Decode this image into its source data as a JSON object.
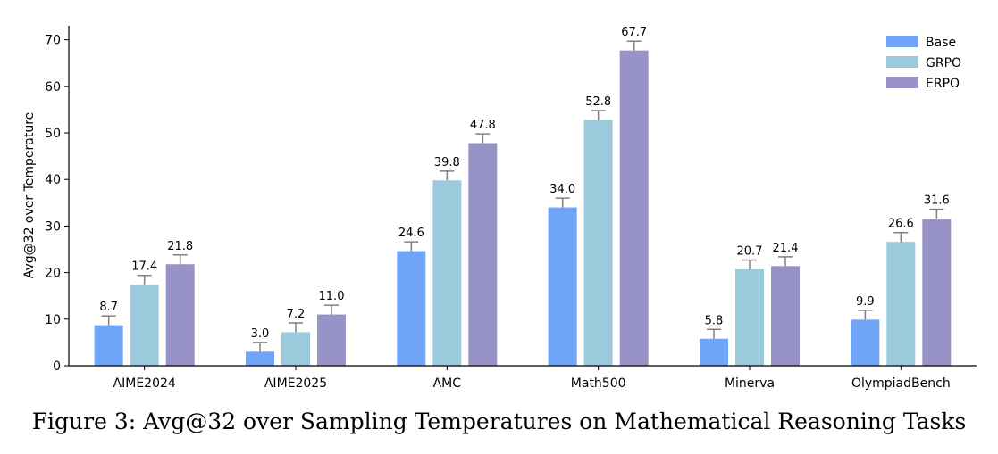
{
  "caption": "Figure 3: Avg@32 over Sampling Temperatures on Mathematical Reasoning Tasks",
  "chart_data": {
    "type": "bar",
    "title": "",
    "xlabel": "",
    "ylabel": "Avg@32 over Temperature",
    "ylim": [
      0,
      73
    ],
    "yticks": [
      0,
      10,
      20,
      30,
      40,
      50,
      60,
      70
    ],
    "categories": [
      "AIME2024",
      "AIME2025",
      "AMC",
      "Math500",
      "Minerva",
      "OlympiadBench"
    ],
    "series": [
      {
        "name": "Base",
        "color": "#6fa4f7",
        "values": [
          8.7,
          3.0,
          24.6,
          34.0,
          5.8,
          9.9
        ],
        "labels": [
          "8.7",
          "3.0",
          "24.6",
          "34.0",
          "5.8",
          "9.9"
        ]
      },
      {
        "name": "GRPO",
        "color": "#9acadb",
        "values": [
          17.4,
          7.2,
          39.8,
          52.8,
          20.7,
          26.6
        ],
        "labels": [
          "17.4",
          "7.2",
          "39.8",
          "52.8",
          "20.7",
          "26.6"
        ]
      },
      {
        "name": "ERPO",
        "color": "#9893c6",
        "values": [
          21.8,
          11.0,
          47.8,
          67.7,
          21.4,
          31.6
        ],
        "labels": [
          "21.8",
          "11.0",
          "47.8",
          "67.7",
          "21.4",
          "31.6"
        ]
      }
    ],
    "error_bar": 2.0,
    "error_color": "#808080",
    "grid": false,
    "legend_position": "top-right"
  }
}
